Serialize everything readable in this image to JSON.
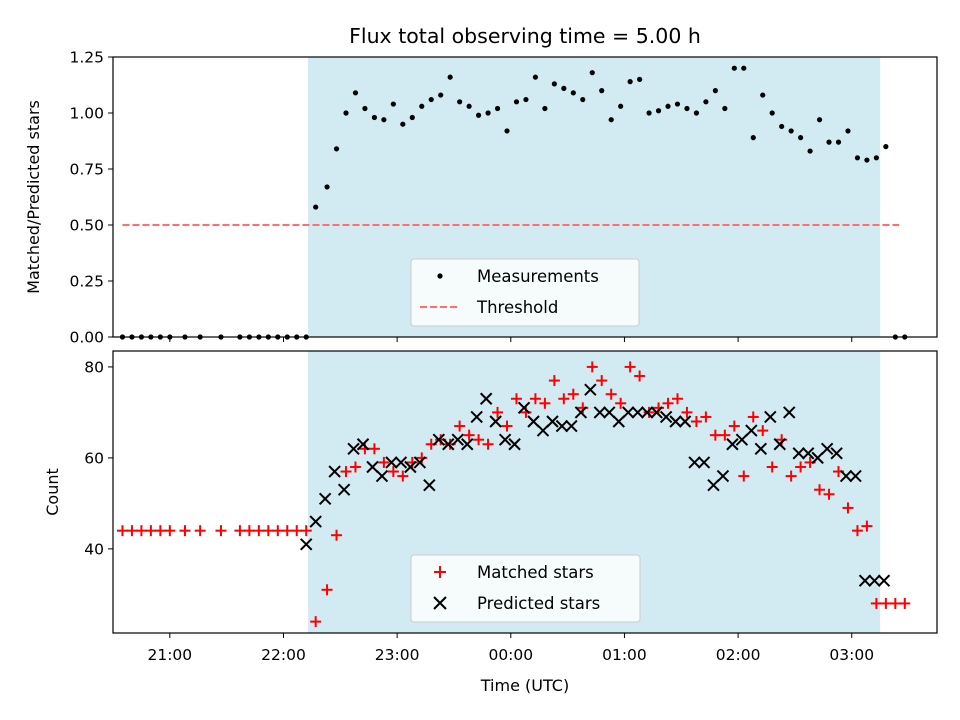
{
  "colors": {
    "shade": "#add8e6",
    "measurement": "#000000",
    "threshold": "#ff6f6f",
    "matched": "#ff0000",
    "predicted": "#000000",
    "legend_bg": "#ffffff"
  },
  "chart_data": [
    {
      "type": "scatter",
      "title": "Flux total observing time = 5.00 h",
      "xlabel": "",
      "ylabel": "Matched/Predicted stars",
      "xlim": [
        "20:30",
        "03:45"
      ],
      "ylim": [
        0,
        1.25
      ],
      "yticks": [
        "0.00",
        "0.25",
        "0.50",
        "0.75",
        "1.00",
        "1.25"
      ],
      "shaded_span": [
        "22:13",
        "03:15"
      ],
      "legend": {
        "placement": "lower center",
        "entries": [
          "Measurements",
          "Threshold"
        ]
      },
      "series": [
        {
          "name": "Measurements",
          "kind": "points",
          "x": [
            "20:35",
            "20:40",
            "20:45",
            "20:50",
            "20:55",
            "21:00",
            "21:08",
            "21:16",
            "21:27",
            "21:37",
            "21:42",
            "21:47",
            "21:52",
            "21:57",
            "22:02",
            "22:07",
            "22:12",
            "22:17",
            "22:23",
            "22:28",
            "22:33",
            "22:38",
            "22:43",
            "22:48",
            "22:53",
            "22:58",
            "23:03",
            "23:08",
            "23:13",
            "23:18",
            "23:23",
            "23:28",
            "23:33",
            "23:38",
            "23:43",
            "23:48",
            "23:53",
            "23:58",
            "00:03",
            "00:08",
            "00:13",
            "00:18",
            "00:23",
            "00:28",
            "00:33",
            "00:38",
            "00:43",
            "00:48",
            "00:53",
            "00:58",
            "01:03",
            "01:08",
            "01:13",
            "01:18",
            "01:23",
            "01:28",
            "01:33",
            "01:38",
            "01:43",
            "01:48",
            "01:53",
            "01:58",
            "02:03",
            "02:08",
            "02:13",
            "02:18",
            "02:23",
            "02:28",
            "02:33",
            "02:38",
            "02:43",
            "02:48",
            "02:53",
            "02:58",
            "03:03",
            "03:08",
            "03:13",
            "03:18",
            "03:23",
            "03:28"
          ],
          "values": [
            0,
            0,
            0,
            0,
            0,
            0,
            0,
            0,
            0,
            0,
            0,
            0,
            0,
            0,
            0,
            0,
            0,
            0.58,
            0.67,
            0.84,
            1.0,
            1.09,
            1.02,
            0.98,
            0.97,
            1.04,
            0.95,
            0.98,
            1.03,
            1.06,
            1.08,
            1.16,
            1.05,
            1.03,
            0.99,
            1.0,
            1.02,
            0.92,
            1.05,
            1.06,
            1.16,
            1.02,
            1.13,
            1.11,
            1.09,
            1.06,
            1.18,
            1.1,
            0.97,
            1.03,
            1.14,
            1.15,
            1.0,
            1.01,
            1.03,
            1.04,
            1.02,
            1.0,
            1.05,
            1.1,
            1.02,
            1.2,
            1.2,
            0.89,
            1.08,
            1.0,
            0.94,
            0.92,
            0.89,
            0.83,
            0.97,
            0.87,
            0.87,
            0.92,
            0.8,
            0.79,
            0.8,
            0.85,
            0,
            0
          ]
        },
        {
          "name": "Threshold",
          "kind": "dashed-line",
          "x": [
            "20:35",
            "03:25"
          ],
          "values": [
            0.5,
            0.5
          ]
        }
      ]
    },
    {
      "type": "scatter",
      "title": "",
      "xlabel": "Time (UTC)",
      "ylabel": "Count",
      "xlim": [
        "20:30",
        "03:45"
      ],
      "ylim": [
        21.5,
        83.5
      ],
      "yticks": [
        "40",
        "60",
        "80"
      ],
      "xticks": [
        "21:00",
        "22:00",
        "23:00",
        "00:00",
        "01:00",
        "02:00",
        "03:00"
      ],
      "shaded_span": [
        "22:13",
        "03:15"
      ],
      "legend": {
        "placement": "lower center",
        "entries": [
          "Matched stars",
          "Predicted stars"
        ]
      },
      "series": [
        {
          "name": "Matched stars",
          "marker": "+",
          "x": [
            "20:35",
            "20:40",
            "20:45",
            "20:50",
            "20:55",
            "21:00",
            "21:08",
            "21:16",
            "21:27",
            "21:37",
            "21:42",
            "21:47",
            "21:52",
            "21:57",
            "22:02",
            "22:07",
            "22:12",
            "22:17",
            "22:23",
            "22:28",
            "22:33",
            "22:38",
            "22:43",
            "22:48",
            "22:53",
            "22:58",
            "23:03",
            "23:08",
            "23:13",
            "23:18",
            "23:23",
            "23:28",
            "23:33",
            "23:38",
            "23:43",
            "23:48",
            "23:53",
            "23:58",
            "00:03",
            "00:08",
            "00:13",
            "00:18",
            "00:23",
            "00:28",
            "00:33",
            "00:38",
            "00:43",
            "00:48",
            "00:53",
            "00:58",
            "01:03",
            "01:08",
            "01:13",
            "01:18",
            "01:23",
            "01:28",
            "01:33",
            "01:38",
            "01:43",
            "01:48",
            "01:53",
            "01:58",
            "02:03",
            "02:08",
            "02:13",
            "02:18",
            "02:23",
            "02:28",
            "02:33",
            "02:38",
            "02:43",
            "02:48",
            "02:53",
            "02:58",
            "03:03",
            "03:08",
            "03:13",
            "03:18",
            "03:23",
            "03:28"
          ],
          "values": [
            44,
            44,
            44,
            44,
            44,
            44,
            44,
            44,
            44,
            44,
            44,
            44,
            44,
            44,
            44,
            44,
            44,
            24,
            31,
            43,
            57,
            58,
            62,
            62,
            59,
            57,
            56,
            59,
            60,
            63,
            64,
            63,
            67,
            65,
            64,
            63,
            70,
            67,
            73,
            70,
            73,
            72,
            77,
            73,
            74,
            71,
            80,
            77,
            74,
            72,
            80,
            78,
            70,
            71,
            72,
            73,
            70,
            68,
            69,
            65,
            65,
            67,
            56,
            69,
            66,
            58,
            64,
            56,
            58,
            59,
            53,
            52,
            57,
            49,
            44,
            45,
            28,
            28,
            28,
            28
          ]
        },
        {
          "name": "Predicted stars",
          "marker": "x",
          "x": [
            "22:12",
            "22:17",
            "22:22",
            "22:27",
            "22:32",
            "22:37",
            "22:42",
            "22:47",
            "22:52",
            "22:57",
            "23:02",
            "23:07",
            "23:12",
            "23:17",
            "23:22",
            "23:27",
            "23:32",
            "23:37",
            "23:42",
            "23:47",
            "23:52",
            "23:57",
            "00:02",
            "00:07",
            "00:12",
            "00:17",
            "00:22",
            "00:27",
            "00:32",
            "00:37",
            "00:42",
            "00:47",
            "00:52",
            "00:57",
            "01:02",
            "01:07",
            "01:12",
            "01:17",
            "01:22",
            "01:27",
            "01:32",
            "01:37",
            "01:42",
            "01:47",
            "01:52",
            "01:57",
            "02:02",
            "02:07",
            "02:12",
            "02:17",
            "02:22",
            "02:27",
            "02:32",
            "02:37",
            "02:42",
            "02:47",
            "02:52",
            "02:57",
            "03:02",
            "03:07",
            "03:12",
            "03:17"
          ],
          "values": [
            41,
            46,
            51,
            57,
            53,
            62,
            63,
            58,
            56,
            59,
            59,
            58,
            59,
            54,
            64,
            63,
            64,
            63,
            69,
            73,
            68,
            64,
            63,
            71,
            68,
            66,
            68,
            67,
            67,
            70,
            75,
            70,
            70,
            68,
            70,
            70,
            70,
            70,
            69,
            68,
            68,
            59,
            59,
            54,
            56,
            63,
            64,
            66,
            62,
            69,
            63,
            70,
            61,
            61,
            60,
            62,
            61,
            56,
            56,
            33,
            33,
            33
          ]
        }
      ]
    }
  ]
}
